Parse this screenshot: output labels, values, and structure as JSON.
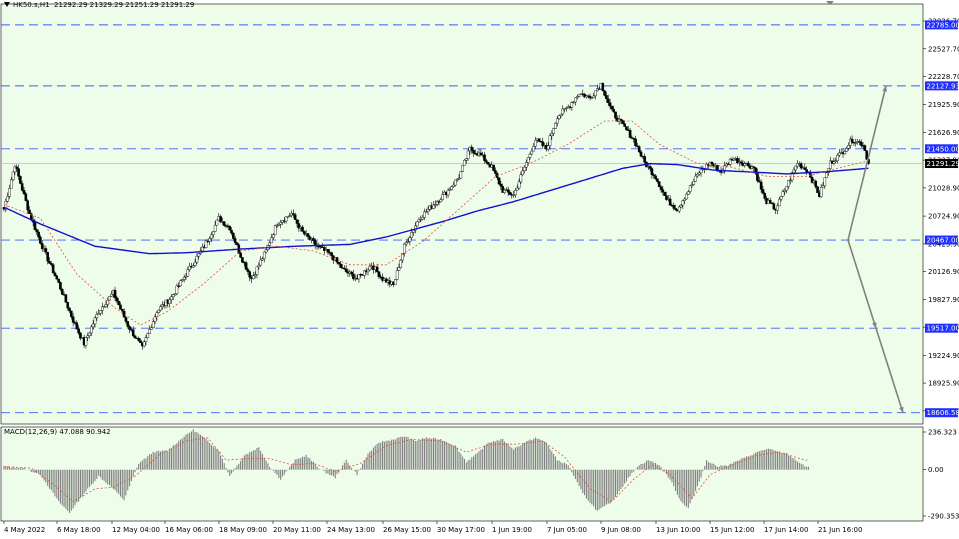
{
  "header": {
    "symbol": "HK50.s,H1",
    "ohlc": "21292.29 21329.29 21251.29 21291.29"
  },
  "colors": {
    "background": "#eefdea",
    "candle": "#000000",
    "level_line": "#3b5bff",
    "ma_slow": "#1010d0",
    "ma_fast": "#e05040",
    "arrow": "#808080",
    "macd_hist": "#808080",
    "macd_signal": "#e05040",
    "price_tag_bg": "#1f2fff",
    "current_tag_bg": "#000000"
  },
  "indicator": {
    "label": "MACD(12,26,9) 47.088 90.942",
    "y_ticks": [
      "236.323",
      "0.00",
      "-290.353"
    ],
    "y_tick_values": [
      236.323,
      0,
      -290.353
    ]
  },
  "chart_data": {
    "type": "candlestick",
    "ylim": [
      18485,
      23010
    ],
    "y_ticks": [
      "22826.70",
      "22527.70",
      "22228.70",
      "21925.90",
      "21626.90",
      "21327.90",
      "21028.90",
      "20724.90",
      "20425.90",
      "20126.90",
      "19827.90",
      "19528.90",
      "19224.90",
      "18925.90",
      "18626.90"
    ],
    "y_tick_values": [
      22826.7,
      22527.7,
      22228.7,
      21925.9,
      21626.9,
      21327.9,
      21028.9,
      20724.9,
      20425.9,
      20126.9,
      19827.9,
      19528.9,
      19224.9,
      18925.9,
      18626.9
    ],
    "x_ticks": [
      "4 May 2022",
      "6 May 18:00",
      "12 May 04:00",
      "16 May 06:00",
      "18 May 09:00",
      "20 May 11:00",
      "24 May 13:00",
      "26 May 15:00",
      "30 May 17:00",
      "1 Jun 19:00",
      "7 Jun 05:00",
      "9 Jun 08:00",
      "13 Jun 10:00",
      "15 Jun 12:00",
      "17 Jun 14:00",
      "21 Jun 16:00"
    ],
    "levels": [
      {
        "label": "22785.00",
        "value": 22785.0
      },
      {
        "label": "22127.93",
        "value": 22127.93
      },
      {
        "label": "21450.00",
        "value": 21450.0
      },
      {
        "label": "20467.00",
        "value": 20467.0
      },
      {
        "label": "19517.00",
        "value": 19517.0
      },
      {
        "label": "18606.58",
        "value": 18606.58
      }
    ],
    "current_price": {
      "label": "21291.29",
      "value": 21291.29
    },
    "close_anchors": [
      [
        0,
        20800
      ],
      [
        6,
        21280
      ],
      [
        14,
        20750
      ],
      [
        22,
        20350
      ],
      [
        30,
        20000
      ],
      [
        38,
        19600
      ],
      [
        44,
        19350
      ],
      [
        52,
        19700
      ],
      [
        60,
        19900
      ],
      [
        68,
        19550
      ],
      [
        76,
        19300
      ],
      [
        84,
        19700
      ],
      [
        92,
        19850
      ],
      [
        100,
        20100
      ],
      [
        110,
        20400
      ],
      [
        118,
        20700
      ],
      [
        124,
        20600
      ],
      [
        130,
        20300
      ],
      [
        136,
        20050
      ],
      [
        144,
        20350
      ],
      [
        150,
        20650
      ],
      [
        158,
        20750
      ],
      [
        164,
        20550
      ],
      [
        172,
        20400
      ],
      [
        180,
        20300
      ],
      [
        186,
        20150
      ],
      [
        194,
        20050
      ],
      [
        202,
        20200
      ],
      [
        208,
        20050
      ],
      [
        214,
        19980
      ],
      [
        220,
        20400
      ],
      [
        228,
        20700
      ],
      [
        236,
        20850
      ],
      [
        244,
        21000
      ],
      [
        250,
        21150
      ],
      [
        256,
        21450
      ],
      [
        262,
        21380
      ],
      [
        268,
        21250
      ],
      [
        274,
        21000
      ],
      [
        280,
        20950
      ],
      [
        286,
        21250
      ],
      [
        292,
        21550
      ],
      [
        298,
        21450
      ],
      [
        304,
        21800
      ],
      [
        310,
        21900
      ],
      [
        316,
        22050
      ],
      [
        322,
        22000
      ],
      [
        328,
        22150
      ],
      [
        334,
        21850
      ],
      [
        340,
        21700
      ],
      [
        346,
        21550
      ],
      [
        352,
        21300
      ],
      [
        358,
        21150
      ],
      [
        364,
        20900
      ],
      [
        370,
        20800
      ],
      [
        376,
        21000
      ],
      [
        382,
        21200
      ],
      [
        388,
        21300
      ],
      [
        394,
        21200
      ],
      [
        400,
        21350
      ],
      [
        406,
        21300
      ],
      [
        412,
        21250
      ],
      [
        418,
        20900
      ],
      [
        424,
        20800
      ],
      [
        430,
        21050
      ],
      [
        436,
        21300
      ],
      [
        442,
        21200
      ],
      [
        448,
        20950
      ],
      [
        454,
        21300
      ],
      [
        460,
        21400
      ],
      [
        466,
        21550
      ],
      [
        472,
        21500
      ],
      [
        475,
        21291.29
      ]
    ],
    "ma_slow_anchors": [
      [
        0,
        20820
      ],
      [
        20,
        20640
      ],
      [
        50,
        20400
      ],
      [
        80,
        20320
      ],
      [
        100,
        20330
      ],
      [
        130,
        20370
      ],
      [
        160,
        20400
      ],
      [
        190,
        20420
      ],
      [
        210,
        20500
      ],
      [
        240,
        20660
      ],
      [
        260,
        20780
      ],
      [
        280,
        20880
      ],
      [
        300,
        21000
      ],
      [
        320,
        21120
      ],
      [
        340,
        21240
      ],
      [
        355,
        21290
      ],
      [
        370,
        21280
      ],
      [
        390,
        21220
      ],
      [
        410,
        21200
      ],
      [
        430,
        21180
      ],
      [
        450,
        21200
      ],
      [
        475,
        21240
      ]
    ],
    "ma_fast_anchors": [
      [
        0,
        20850
      ],
      [
        20,
        20700
      ],
      [
        40,
        20100
      ],
      [
        60,
        19750
      ],
      [
        75,
        19550
      ],
      [
        90,
        19700
      ],
      [
        110,
        20000
      ],
      [
        130,
        20350
      ],
      [
        150,
        20400
      ],
      [
        170,
        20350
      ],
      [
        190,
        20200
      ],
      [
        210,
        20200
      ],
      [
        230,
        20450
      ],
      [
        250,
        20800
      ],
      [
        270,
        21150
      ],
      [
        290,
        21300
      ],
      [
        310,
        21500
      ],
      [
        330,
        21750
      ],
      [
        345,
        21750
      ],
      [
        360,
        21500
      ],
      [
        380,
        21300
      ],
      [
        400,
        21250
      ],
      [
        420,
        21150
      ],
      [
        440,
        21150
      ],
      [
        460,
        21250
      ],
      [
        475,
        21320
      ]
    ],
    "macd_anchors": [
      [
        0,
        20
      ],
      [
        10,
        10
      ],
      [
        20,
        -30
      ],
      [
        30,
        -200
      ],
      [
        36,
        -270
      ],
      [
        44,
        -150
      ],
      [
        52,
        -40
      ],
      [
        60,
        -120
      ],
      [
        66,
        -190
      ],
      [
        74,
        40
      ],
      [
        82,
        110
      ],
      [
        90,
        120
      ],
      [
        98,
        200
      ],
      [
        104,
        250
      ],
      [
        110,
        200
      ],
      [
        118,
        120
      ],
      [
        124,
        -40
      ],
      [
        132,
        90
      ],
      [
        140,
        140
      ],
      [
        146,
        20
      ],
      [
        152,
        -60
      ],
      [
        160,
        60
      ],
      [
        166,
        90
      ],
      [
        174,
        0
      ],
      [
        182,
        -50
      ],
      [
        188,
        60
      ],
      [
        194,
        -30
      ],
      [
        200,
        100
      ],
      [
        206,
        170
      ],
      [
        214,
        190
      ],
      [
        220,
        210
      ],
      [
        226,
        180
      ],
      [
        232,
        200
      ],
      [
        240,
        190
      ],
      [
        248,
        150
      ],
      [
        254,
        50
      ],
      [
        260,
        100
      ],
      [
        266,
        170
      ],
      [
        274,
        190
      ],
      [
        280,
        130
      ],
      [
        286,
        170
      ],
      [
        292,
        200
      ],
      [
        298,
        170
      ],
      [
        304,
        60
      ],
      [
        310,
        30
      ],
      [
        318,
        -150
      ],
      [
        326,
        -260
      ],
      [
        334,
        -200
      ],
      [
        342,
        -70
      ],
      [
        348,
        20
      ],
      [
        354,
        60
      ],
      [
        360,
        30
      ],
      [
        366,
        -60
      ],
      [
        372,
        -200
      ],
      [
        376,
        -240
      ],
      [
        382,
        -80
      ],
      [
        386,
        60
      ],
      [
        392,
        20
      ],
      [
        398,
        30
      ],
      [
        404,
        60
      ],
      [
        410,
        90
      ],
      [
        416,
        120
      ],
      [
        420,
        130
      ],
      [
        426,
        110
      ],
      [
        430,
        100
      ],
      [
        434,
        70
      ],
      [
        440,
        20
      ]
    ],
    "macd_signal_anchors": [
      [
        0,
        20
      ],
      [
        15,
        10
      ],
      [
        28,
        -100
      ],
      [
        38,
        -200
      ],
      [
        50,
        -120
      ],
      [
        60,
        -110
      ],
      [
        72,
        -40
      ],
      [
        85,
        90
      ],
      [
        100,
        180
      ],
      [
        112,
        200
      ],
      [
        122,
        60
      ],
      [
        134,
        70
      ],
      [
        146,
        70
      ],
      [
        158,
        30
      ],
      [
        170,
        40
      ],
      [
        182,
        -10
      ],
      [
        196,
        40
      ],
      [
        210,
        150
      ],
      [
        224,
        190
      ],
      [
        240,
        180
      ],
      [
        254,
        110
      ],
      [
        268,
        160
      ],
      [
        282,
        160
      ],
      [
        296,
        180
      ],
      [
        308,
        80
      ],
      [
        322,
        -120
      ],
      [
        334,
        -200
      ],
      [
        346,
        -60
      ],
      [
        356,
        30
      ],
      [
        366,
        -30
      ],
      [
        378,
        -180
      ],
      [
        388,
        -30
      ],
      [
        400,
        30
      ],
      [
        414,
        90
      ],
      [
        426,
        110
      ],
      [
        440,
        60
      ]
    ],
    "arrows": [
      {
        "from": [
          20467.0
        ],
        "to": [
          22127.93
        ]
      },
      {
        "from": [
          20467.0
        ],
        "to": [
          19517.0
        ]
      },
      {
        "from": [
          19517.0
        ],
        "to": [
          18606.58
        ]
      }
    ]
  }
}
